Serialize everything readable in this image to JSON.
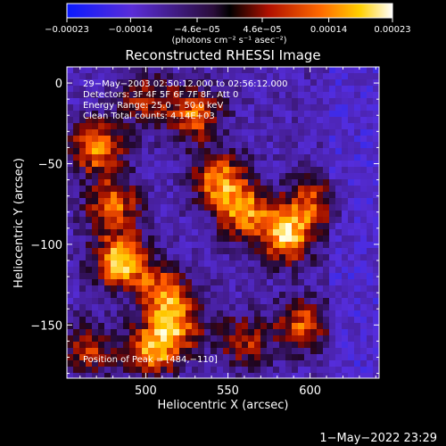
{
  "chart_data": {
    "type": "heatmap",
    "title": "Reconstructed RHESSI Image",
    "xlabel": "Heliocentric X (arcsec)",
    "ylabel": "Heliocentric Y (arcsec)",
    "xlim": [
      452,
      642
    ],
    "ylim": [
      -183,
      10
    ],
    "x_ticks": [
      500,
      550,
      600
    ],
    "x_tick_labels": [
      "500",
      "550",
      "600"
    ],
    "y_ticks": [
      0,
      -50,
      -100,
      -150
    ],
    "y_tick_labels": [
      "0",
      "−50",
      "−100",
      "−150"
    ],
    "colorbar": {
      "range": [
        -0.00023,
        0.00023
      ],
      "ticks": [
        -0.00023,
        -0.00014,
        -4.6e-05,
        4.6e-05,
        0.00014,
        0.00023
      ],
      "tick_labels": [
        "−0.00023",
        "−0.00014",
        "−4.6e−05",
        "4.6e−05",
        "0.00014",
        "0.00023"
      ],
      "units": "(photons cm⁻² s⁻¹ asec⁻²)",
      "colormap": "blue-purple-red-yellow-white"
    },
    "peak": {
      "x": 484,
      "y": -110
    },
    "annotations": [
      "29−May−2003 02:50:12.000 to 02:56:12.000",
      "Detectors: 3F 4F 5F 6F 7F 8F, Att 0",
      "Energy Range: 25.0 − 50.0 keV",
      "Clean     Total counts: 4.14E+03"
    ],
    "peak_label": "Position of Peak = [484,−110]",
    "hot_regions": [
      {
        "x": 485,
        "y": -110,
        "strength": 1.0
      },
      {
        "x": 470,
        "y": -40,
        "strength": 0.8
      },
      {
        "x": 480,
        "y": -75,
        "strength": 0.7
      },
      {
        "x": 530,
        "y": -20,
        "strength": 0.7
      },
      {
        "x": 545,
        "y": -60,
        "strength": 0.8
      },
      {
        "x": 560,
        "y": -80,
        "strength": 0.75
      },
      {
        "x": 585,
        "y": -95,
        "strength": 0.9
      },
      {
        "x": 600,
        "y": -75,
        "strength": 0.6
      },
      {
        "x": 510,
        "y": -130,
        "strength": 0.7
      },
      {
        "x": 505,
        "y": -165,
        "strength": 0.8
      },
      {
        "x": 520,
        "y": -150,
        "strength": 0.6
      },
      {
        "x": 595,
        "y": -150,
        "strength": 0.65
      },
      {
        "x": 560,
        "y": -160,
        "strength": 0.5
      },
      {
        "x": 465,
        "y": -165,
        "strength": 0.55
      },
      {
        "x": 500,
        "y": -10,
        "strength": 0.5
      }
    ]
  },
  "footer": {
    "timestamp": "1−May−2022 23:29"
  }
}
